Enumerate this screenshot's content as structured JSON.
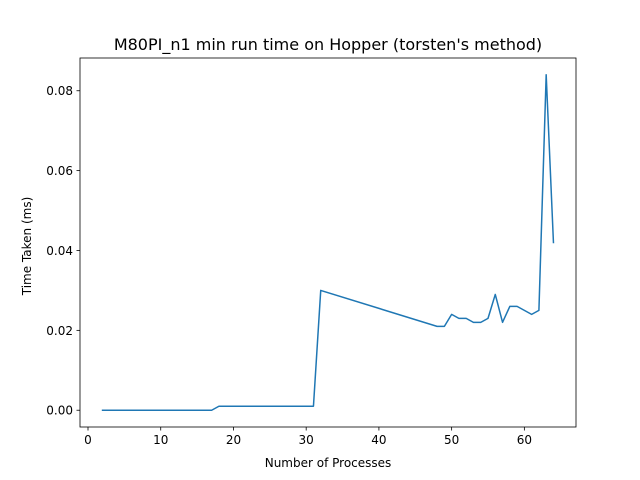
{
  "chart_data": {
    "type": "line",
    "title": "M80PI_n1 min run time on Hopper (torsten's method)",
    "xlabel": "Number of Processes",
    "ylabel": "Time Taken (ms)",
    "xlim": [
      -1.1,
      67.1
    ],
    "ylim": [
      -0.0042,
      0.0882
    ],
    "xticks": [
      0,
      10,
      20,
      30,
      40,
      50,
      60
    ],
    "yticks": [
      0.0,
      0.02,
      0.04,
      0.06,
      0.08
    ],
    "ytick_labels": [
      "0.00",
      "0.02",
      "0.04",
      "0.06",
      "0.08"
    ],
    "grid": false,
    "series": [
      {
        "color": "#1f77b4",
        "x": [
          2,
          17,
          18,
          31,
          32,
          48,
          49,
          50,
          51,
          52,
          53,
          54,
          55,
          56,
          57,
          58,
          59,
          60,
          61,
          62,
          63,
          64
        ],
        "y": [
          0.0,
          0.0,
          0.001,
          0.001,
          0.03,
          0.021,
          0.021,
          0.024,
          0.023,
          0.023,
          0.022,
          0.022,
          0.023,
          0.029,
          0.022,
          0.026,
          0.026,
          0.025,
          0.024,
          0.025,
          0.084,
          0.042
        ]
      }
    ]
  }
}
